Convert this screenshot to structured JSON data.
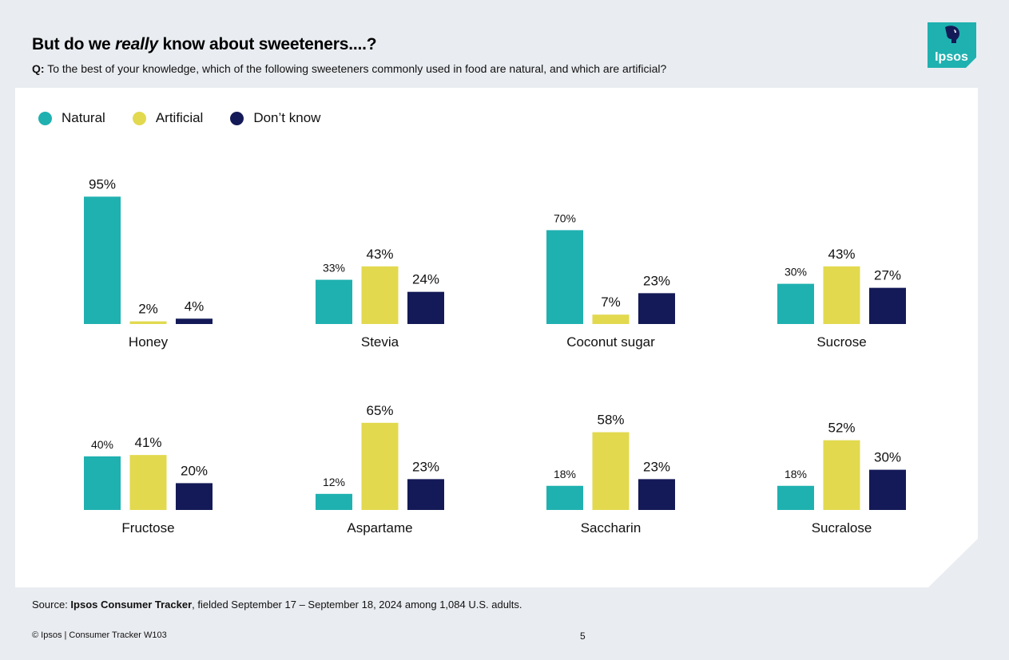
{
  "header": {
    "title_part1": "But do we ",
    "title_emphasis": "really",
    "title_part2": " know about sweeteners....?",
    "question_prefix": "Q:",
    "question_text": " To the best of your knowledge, which of the following sweeteners commonly used in food are natural, and which are artificial?"
  },
  "logo": {
    "text": "Ipsos",
    "color": "#1fb1b0"
  },
  "colors": {
    "natural": "#1fb1b0",
    "artificial": "#e2d94f",
    "dont_know": "#141a57"
  },
  "chart_data": {
    "type": "bar",
    "title": "But do we really know about sweeteners....?",
    "legend": [
      "Natural",
      "Artificial",
      "Don’t know"
    ],
    "legend_position": "top-left",
    "unit": "%",
    "groups": [
      {
        "name": "Honey",
        "values": [
          95,
          2,
          4
        ]
      },
      {
        "name": "Stevia",
        "values": [
          33,
          43,
          24
        ]
      },
      {
        "name": "Coconut sugar",
        "values": [
          70,
          7,
          23
        ]
      },
      {
        "name": "Sucrose",
        "values": [
          30,
          43,
          27
        ]
      },
      {
        "name": "Fructose",
        "values": [
          40,
          41,
          20
        ]
      },
      {
        "name": "Aspartame",
        "values": [
          12,
          65,
          23
        ]
      },
      {
        "name": "Saccharin",
        "values": [
          18,
          58,
          23
        ]
      },
      {
        "name": "Sucralose",
        "values": [
          18,
          52,
          30
        ]
      }
    ],
    "ylim": [
      0,
      100
    ]
  },
  "footer": {
    "source_prefix": "Source: ",
    "source_bold": "Ipsos Consumer Tracker",
    "source_rest": ", fielded September 17 – September 18, 2024 among 1,084 U.S. adults.",
    "copyright": "© Ipsos | Consumer Tracker W103",
    "page_number": "5"
  }
}
